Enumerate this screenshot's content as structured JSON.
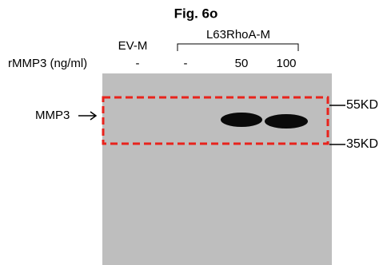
{
  "title": "Fig. 6o",
  "groups": [
    "EV-M",
    "L63RhoA-M"
  ],
  "row_label": "rMMP3 (ng/ml)",
  "doses": [
    "-",
    "-",
    "50",
    "100"
  ],
  "band_label": "MMP3",
  "markers": [
    "55KD",
    "35KD"
  ]
}
